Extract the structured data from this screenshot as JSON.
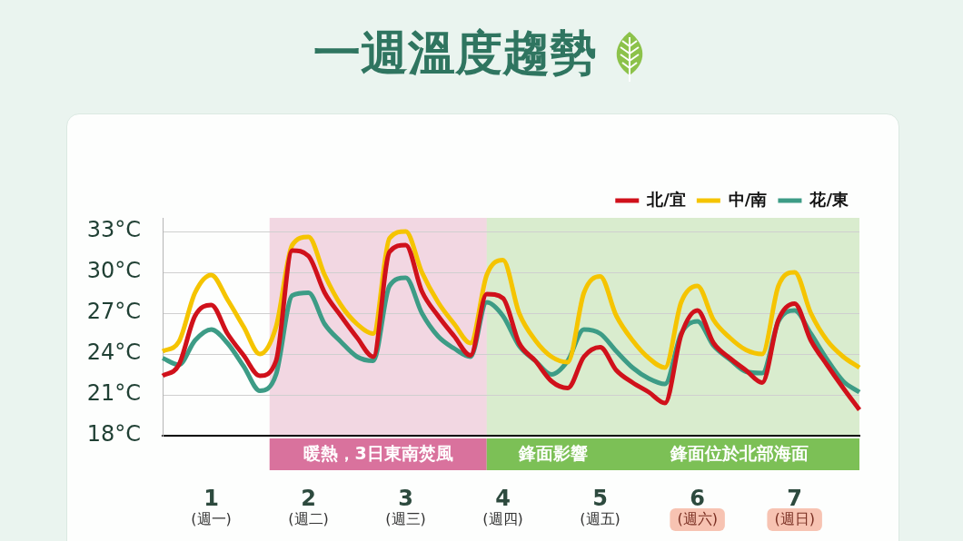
{
  "chart_data": {
    "type": "line",
    "title": "一週溫度趨勢",
    "categories": [
      null,
      null,
      null,
      "1",
      null,
      null,
      null,
      null,
      null,
      "2",
      null,
      null,
      null,
      null,
      null,
      "3",
      null,
      null,
      null,
      null,
      null,
      "4",
      null,
      null,
      null,
      null,
      null,
      "5",
      null,
      null,
      null,
      null,
      null,
      "6",
      null,
      null,
      null,
      null,
      null,
      "7",
      null,
      null,
      null,
      null
    ],
    "series": [
      {
        "name": "北/宜",
        "color": "#d0111b",
        "values": [
          22.4,
          23.2,
          26.8,
          27.6,
          25.5,
          23.9,
          22.4,
          23.5,
          31.6,
          31.2,
          28.5,
          26.8,
          25.2,
          23.8,
          31.5,
          32.0,
          28.6,
          26.8,
          25.3,
          23.9,
          28.4,
          28.1,
          24.8,
          23.5,
          22.0,
          21.5,
          23.8,
          24.5,
          22.8,
          21.9,
          21.2,
          20.4,
          25.4,
          27.2,
          24.8,
          23.7,
          22.8,
          21.9,
          26.5,
          27.7,
          25.0,
          23.2,
          21.5,
          19.9
        ]
      },
      {
        "name": "中/南",
        "color": "#f5c400",
        "values": [
          24.2,
          24.9,
          28.5,
          29.8,
          28.0,
          26.0,
          24.0,
          26.0,
          32.0,
          32.6,
          29.8,
          27.6,
          26.2,
          25.5,
          32.5,
          33.0,
          30.0,
          27.8,
          26.2,
          24.8,
          29.8,
          30.9,
          27.0,
          25.0,
          23.8,
          23.4,
          28.5,
          29.7,
          26.8,
          25.0,
          23.7,
          23.0,
          27.8,
          29.0,
          26.5,
          25.2,
          24.3,
          24.0,
          29.0,
          30.0,
          27.0,
          25.0,
          23.8,
          23.0
        ]
      },
      {
        "name": "花/東",
        "color": "#3d9c86",
        "values": [
          23.7,
          23.2,
          25.0,
          25.8,
          24.8,
          23.1,
          21.3,
          22.5,
          28.3,
          28.5,
          26.2,
          24.9,
          23.8,
          23.5,
          29.0,
          29.6,
          27.0,
          25.3,
          24.4,
          23.8,
          27.8,
          26.8,
          24.6,
          23.5,
          22.5,
          23.5,
          25.8,
          25.5,
          24.2,
          23.0,
          22.2,
          21.8,
          25.5,
          26.4,
          24.6,
          23.6,
          22.7,
          22.6,
          26.4,
          27.2,
          25.5,
          23.6,
          22.0,
          21.2
        ]
      }
    ],
    "ylim": [
      18,
      34
    ],
    "yticks": [
      {
        "value": 18,
        "label": "18°C"
      },
      {
        "value": 21,
        "label": "21°C"
      },
      {
        "value": 24,
        "label": "24°C"
      },
      {
        "value": 27,
        "label": "27°C"
      },
      {
        "value": 30,
        "label": "30°C"
      },
      {
        "value": 33,
        "label": "33°C"
      }
    ],
    "grid": true,
    "legend": "top-right",
    "bands": [
      {
        "label": "暖熱，3日東南焚風",
        "from": 6.6,
        "to": 20,
        "color": "#d9729d"
      },
      {
        "label": "鋒面影響",
        "from": 20,
        "to": 28.2,
        "color": "#7cc056"
      },
      {
        "label": "鋒面位於北部海面",
        "from": 28.2,
        "to": 43,
        "color": "#7cc056"
      }
    ],
    "x_sublabels": {
      "labels": [
        "(週一)",
        "(週二)",
        "(週三)",
        "(週四)",
        "(週五)",
        "(週六)",
        "(週日)"
      ],
      "colors": [
        null,
        null,
        null,
        null,
        null,
        "#f7c3b2",
        "#f7c3b2"
      ]
    }
  }
}
